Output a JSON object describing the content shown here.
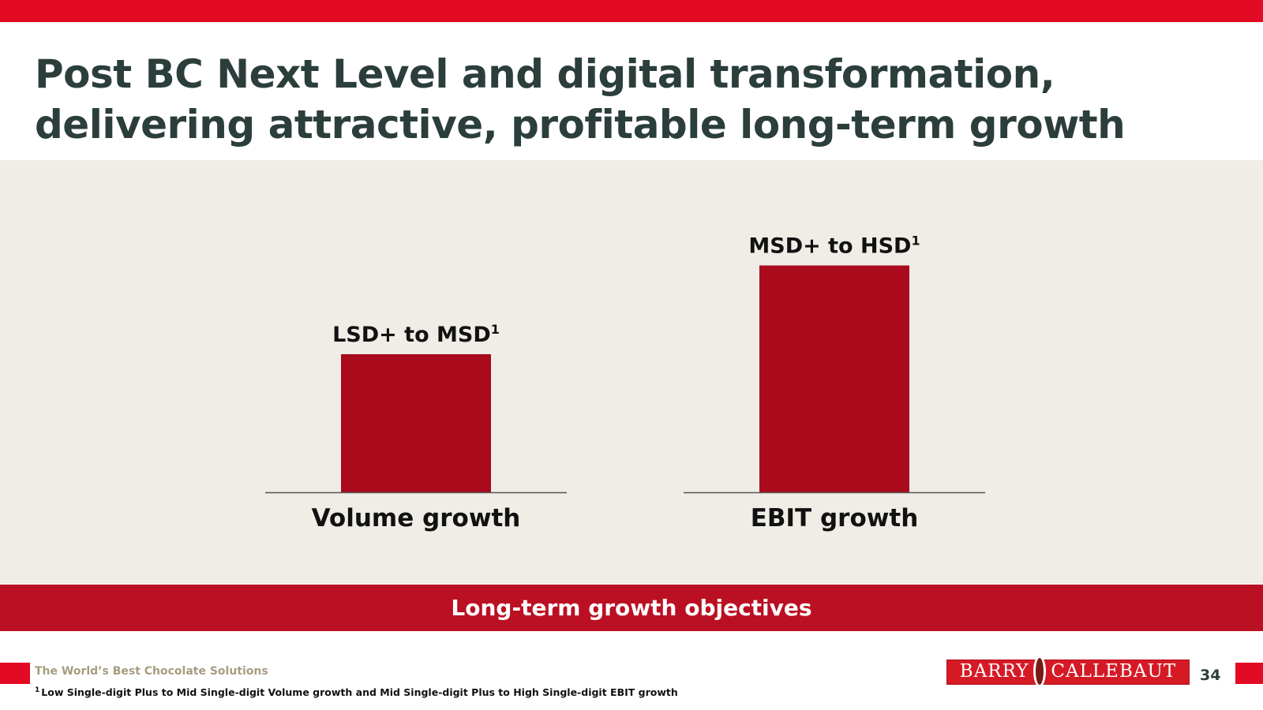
{
  "slide": {
    "title_line1": "Post BC Next Level and digital transformation,",
    "title_line2": "delivering attractive, profitable long-term growth",
    "banner": "Long-term growth objectives",
    "tagline": "The World’s Best Chocolate Solutions",
    "footnote_marker": "1",
    "footnote": "Low Single-digit Plus to Mid Single-digit Volume growth and Mid Single-digit Plus to High Single-digit EBIT growth",
    "logo_left": "BARRY",
    "logo_right": "CALLEBAUT",
    "page_number": "34"
  },
  "colors": {
    "top_bar": "#e30b24",
    "bar": "#a90a1c",
    "banner": "#bb0f23",
    "title": "#2b3e3b",
    "panel": "#efede6"
  },
  "chart_data": {
    "type": "bar",
    "categories": [
      "Volume growth",
      "EBIT growth"
    ],
    "values": [
      3.5,
      5.75
    ],
    "value_labels": [
      "LSD+ to MSD",
      "MSD+ to HSD"
    ],
    "label_superscript": "1",
    "ylim": [
      0,
      8
    ],
    "grid": false,
    "legend": "none"
  }
}
